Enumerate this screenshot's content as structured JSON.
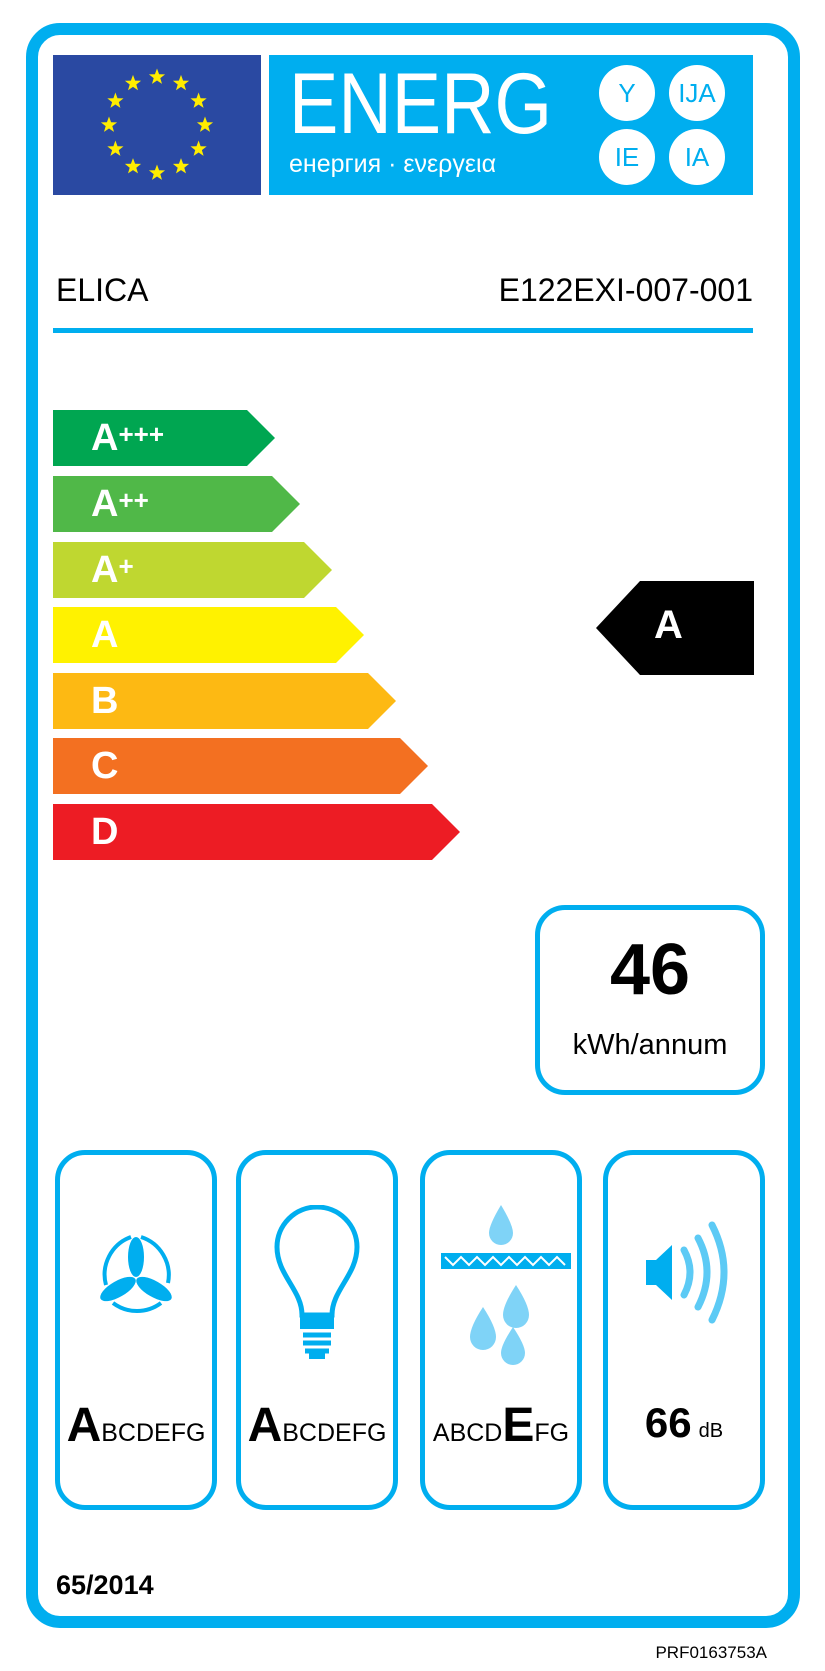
{
  "header": {
    "energy_word": "ENERG",
    "subtitle": "енергия · ενεργεια",
    "suffixes": [
      "Y",
      "IJA",
      "IE",
      "IA"
    ]
  },
  "supplier": "ELICA",
  "model": "E122EXI-007-001",
  "energy_classes": [
    {
      "letter": "A",
      "plus": "+++",
      "color": "#00a651"
    },
    {
      "letter": "A",
      "plus": "++",
      "color": "#50b848"
    },
    {
      "letter": "A",
      "plus": "+",
      "color": "#bfd730"
    },
    {
      "letter": "A",
      "plus": "",
      "color": "#fff200"
    },
    {
      "letter": "B",
      "plus": "",
      "color": "#fdb913"
    },
    {
      "letter": "C",
      "plus": "",
      "color": "#f37021"
    },
    {
      "letter": "D",
      "plus": "",
      "color": "#ed1c24"
    }
  ],
  "rating": "A",
  "consumption": {
    "value": "46",
    "unit": "kWh/annum"
  },
  "pictograms": [
    {
      "icon": "fan-icon",
      "highlight": "A",
      "rest_before": "",
      "rest_after": "BCDEFG"
    },
    {
      "icon": "lightbulb-icon",
      "highlight": "A",
      "rest_before": "",
      "rest_after": "BCDEFG"
    },
    {
      "icon": "grease-filter-icon",
      "highlight": "E",
      "rest_before": "ABCD",
      "rest_after": "FG"
    },
    {
      "icon": "speaker-icon",
      "value": "66",
      "unit": "dB"
    }
  ],
  "regulation": "65/2014",
  "code": "PRF0163753A",
  "colors": {
    "frame": "#00aeef",
    "eu_blue": "#2a49a2",
    "star": "#ffed00"
  }
}
